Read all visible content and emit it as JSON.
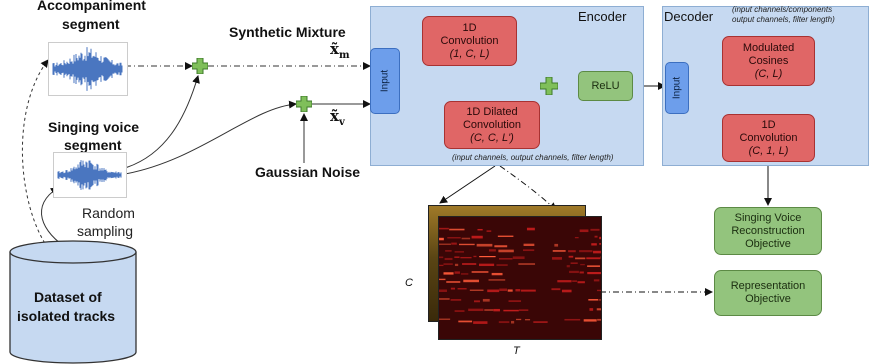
{
  "labels": {
    "accompaniment_line1": "Accompaniment",
    "accompaniment_line2": "segment",
    "singing_line1": "Singing voice",
    "singing_line2": "segment",
    "random_line1": "Random",
    "random_line2": "sampling",
    "synthetic_mixture": "Synthetic Mixture",
    "x_m_base": "x̃",
    "x_m_sub": "m",
    "x_v_base": "x̃",
    "x_v_sub": "v",
    "gaussian_noise": "Gaussian Noise",
    "dataset_line1": "Dataset of",
    "dataset_line2": "isolated tracks",
    "axis_c": "C",
    "axis_t": "T"
  },
  "encoder": {
    "title": "Encoder",
    "input": "Input",
    "conv_title_1": "1D",
    "conv_title_2": "Convolution",
    "conv_params": "(1, C, L)",
    "dilated_title_1": "1D Dilated",
    "dilated_title_2": "Convolution",
    "dilated_params": "(C, C, L')",
    "relu": "ReLU",
    "caption": "(input channels, output channels, filter length)"
  },
  "decoder": {
    "title": "Decoder",
    "caption_line1": "(input channels/components",
    "caption_line2": "output channels, filter length)",
    "input": "Input",
    "cosines_title_1": "Modulated",
    "cosines_title_2": "Cosines",
    "cosines_params": "(C, L)",
    "conv_title_1": "1D",
    "conv_title_2": "Convolution",
    "conv_params": "(C, 1, L)"
  },
  "objectives": {
    "singing_1": "Singing Voice",
    "singing_2": "Reconstruction",
    "singing_3": "Objective",
    "representation_1": "Representation",
    "representation_2": "Objective"
  },
  "colors": {
    "panel": "#c6d9f1",
    "conv_block": "#e06666",
    "objective_block": "#93c47d",
    "input_block": "#6d9eeb",
    "spectrogram": "#8a1a1a",
    "waveform": "#4a76c0"
  }
}
